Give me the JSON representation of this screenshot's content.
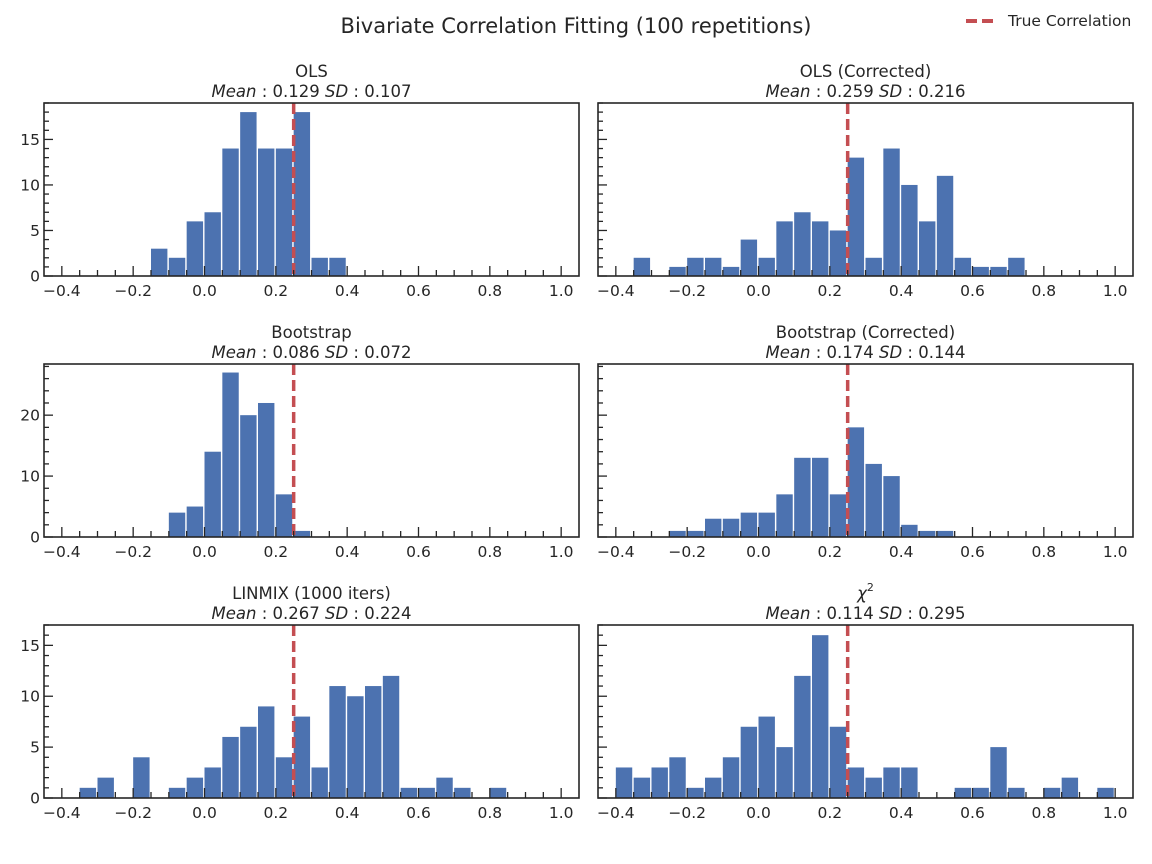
{
  "figure": {
    "title": "Bivariate Correlation Fitting (100 repetitions)"
  },
  "legend": {
    "label": "True Correlation",
    "placement": "top-right"
  },
  "colors": {
    "bar": "#4c72b0",
    "true_line": "#c44e52",
    "axis": "#262626"
  },
  "chart_data": [
    {
      "type": "bar",
      "title": "OLS",
      "mean": "0.129",
      "sd": "0.107",
      "true_value": 0.25,
      "xlim": [
        -0.45,
        1.05
      ],
      "ylim": [
        0,
        19
      ],
      "yticks": [
        0,
        5,
        10,
        15
      ],
      "bin_width": 0.05,
      "x": [
        -0.15,
        -0.1,
        -0.05,
        0.0,
        0.05,
        0.1,
        0.15,
        0.2,
        0.25,
        0.3,
        0.35
      ],
      "values": [
        3,
        2,
        6,
        7,
        14,
        18,
        14,
        14,
        18,
        2,
        2
      ]
    },
    {
      "type": "bar",
      "title": "OLS (Corrected)",
      "mean": "0.259",
      "sd": "0.216",
      "true_value": 0.25,
      "xlim": [
        -0.45,
        1.05
      ],
      "ylim": [
        0,
        19
      ],
      "yticks": [],
      "bin_width": 0.05,
      "x": [
        -0.35,
        -0.25,
        -0.2,
        -0.15,
        -0.1,
        -0.05,
        0.0,
        0.05,
        0.1,
        0.15,
        0.2,
        0.25,
        0.3,
        0.35,
        0.4,
        0.45,
        0.5,
        0.55,
        0.6,
        0.65,
        0.7
      ],
      "values": [
        2,
        1,
        2,
        2,
        1,
        4,
        2,
        6,
        7,
        6,
        5,
        13,
        2,
        14,
        10,
        6,
        11,
        2,
        1,
        1,
        2
      ]
    },
    {
      "type": "bar",
      "title": "Bootstrap",
      "mean": "0.086",
      "sd": "0.072",
      "true_value": 0.25,
      "xlim": [
        -0.45,
        1.05
      ],
      "ylim": [
        0,
        28.4
      ],
      "yticks": [
        0,
        10,
        20
      ],
      "bin_width": 0.05,
      "x": [
        -0.1,
        -0.05,
        0.0,
        0.05,
        0.1,
        0.15,
        0.2,
        0.25
      ],
      "values": [
        4,
        5,
        14,
        27,
        20,
        22,
        7,
        1
      ]
    },
    {
      "type": "bar",
      "title": "Bootstrap (Corrected)",
      "mean": "0.174",
      "sd": "0.144",
      "true_value": 0.25,
      "xlim": [
        -0.45,
        1.05
      ],
      "ylim": [
        0,
        28.4
      ],
      "yticks": [],
      "bin_width": 0.05,
      "x": [
        -0.25,
        -0.2,
        -0.15,
        -0.1,
        -0.05,
        0.0,
        0.05,
        0.1,
        0.15,
        0.2,
        0.25,
        0.3,
        0.35,
        0.4,
        0.45,
        0.5
      ],
      "values": [
        1,
        1,
        3,
        3,
        4,
        4,
        7,
        13,
        13,
        7,
        18,
        12,
        10,
        2,
        1,
        1
      ]
    },
    {
      "type": "bar",
      "title": "LINMIX (1000 iters)",
      "mean": "0.267",
      "sd": "0.224",
      "true_value": 0.25,
      "xlim": [
        -0.45,
        1.05
      ],
      "ylim": [
        0,
        17
      ],
      "yticks": [
        0,
        5,
        10,
        15
      ],
      "bin_width": 0.05,
      "x": [
        -0.35,
        -0.3,
        -0.2,
        -0.1,
        -0.05,
        0.0,
        0.05,
        0.1,
        0.15,
        0.2,
        0.25,
        0.3,
        0.35,
        0.4,
        0.45,
        0.5,
        0.55,
        0.6,
        0.65,
        0.7,
        0.8
      ],
      "values": [
        1,
        2,
        4,
        1,
        2,
        3,
        6,
        7,
        9,
        4,
        8,
        3,
        11,
        10,
        11,
        12,
        1,
        1,
        2,
        1,
        1
      ]
    },
    {
      "type": "bar",
      "title": "χ",
      "title_sup": "2",
      "mean": "0.114",
      "sd": "0.295",
      "true_value": 0.25,
      "xlim": [
        -0.45,
        1.05
      ],
      "ylim": [
        0,
        17
      ],
      "yticks": [],
      "bin_width": 0.05,
      "x": [
        -0.4,
        -0.35,
        -0.3,
        -0.25,
        -0.2,
        -0.15,
        -0.1,
        -0.05,
        0.0,
        0.05,
        0.1,
        0.15,
        0.2,
        0.25,
        0.3,
        0.35,
        0.4,
        0.55,
        0.6,
        0.65,
        0.7,
        0.8,
        0.85,
        0.95
      ],
      "values": [
        3,
        2,
        3,
        4,
        1,
        2,
        4,
        7,
        8,
        5,
        12,
        16,
        7,
        3,
        2,
        3,
        3,
        1,
        1,
        5,
        1,
        1,
        2,
        1
      ]
    }
  ],
  "xticks": [
    -0.4,
    -0.2,
    0.0,
    0.2,
    0.4,
    0.6,
    0.8,
    1.0
  ],
  "xtick_labels": [
    "−0.4",
    "−0.2",
    "0.0",
    "0.2",
    "0.4",
    "0.6",
    "0.8",
    "1.0"
  ],
  "stat_labels": {
    "mean": "Mean",
    "sd": "SD"
  }
}
